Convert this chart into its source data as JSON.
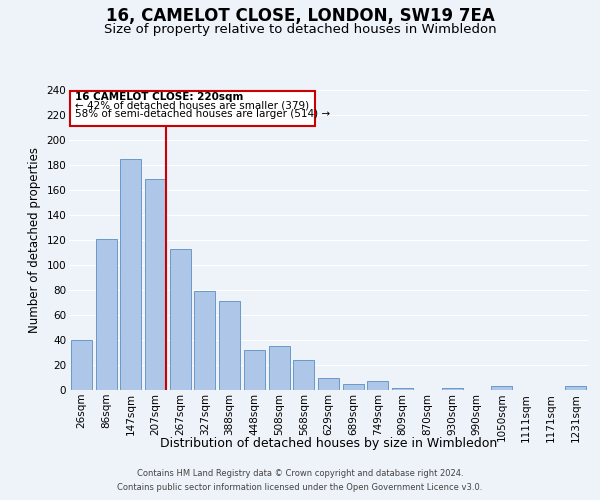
{
  "title": "16, CAMELOT CLOSE, LONDON, SW19 7EA",
  "subtitle": "Size of property relative to detached houses in Wimbledon",
  "bar_labels": [
    "26sqm",
    "86sqm",
    "147sqm",
    "207sqm",
    "267sqm",
    "327sqm",
    "388sqm",
    "448sqm",
    "508sqm",
    "568sqm",
    "629sqm",
    "689sqm",
    "749sqm",
    "809sqm",
    "870sqm",
    "930sqm",
    "990sqm",
    "1050sqm",
    "1111sqm",
    "1171sqm",
    "1231sqm"
  ],
  "bar_values": [
    40,
    121,
    185,
    169,
    113,
    79,
    71,
    32,
    35,
    24,
    10,
    5,
    7,
    2,
    0,
    2,
    0,
    3,
    0,
    0,
    3
  ],
  "bar_color": "#aec6e8",
  "bar_edge_color": "#5a8fc2",
  "vline_color": "#cc0000",
  "ylim": [
    0,
    240
  ],
  "yticks": [
    0,
    20,
    40,
    60,
    80,
    100,
    120,
    140,
    160,
    180,
    200,
    220,
    240
  ],
  "ylabel": "Number of detached properties",
  "xlabel": "Distribution of detached houses by size in Wimbledon",
  "annotation_title": "16 CAMELOT CLOSE: 220sqm",
  "annotation_line1": "← 42% of detached houses are smaller (379)",
  "annotation_line2": "58% of semi-detached houses are larger (514) →",
  "annotation_box_color": "#cc0000",
  "footnote1": "Contains HM Land Registry data © Crown copyright and database right 2024.",
  "footnote2": "Contains public sector information licensed under the Open Government Licence v3.0.",
  "bg_color": "#eef2f9",
  "grid_color": "#ffffff",
  "title_fontsize": 12,
  "subtitle_fontsize": 9.5,
  "tick_fontsize": 7.5,
  "axis_label_fontsize": 8.5,
  "xlabel_fontsize": 9
}
